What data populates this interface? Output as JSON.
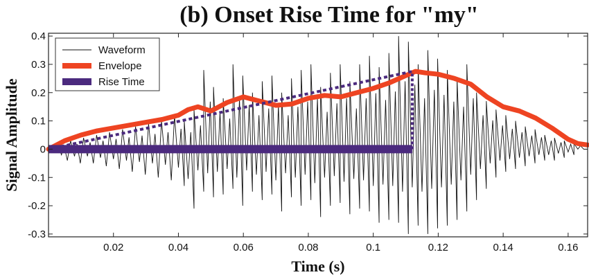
{
  "chart_data": {
    "type": "line",
    "title": "(b) Onset Rise Time for \"my\"",
    "xlabel": "Time (s)",
    "ylabel": "Signal Amplitude",
    "xlim": [
      0,
      0.166
    ],
    "ylim": [
      -0.31,
      0.41
    ],
    "x_ticks": [
      0.02,
      0.04,
      0.06,
      0.08,
      0.1,
      0.12,
      0.14,
      0.16
    ],
    "x_tick_labels": [
      "0.02",
      "0.04",
      "0.06",
      "0.08",
      "0.1",
      "0.12",
      "0.14",
      "0.16"
    ],
    "y_ticks": [
      -0.3,
      -0.2,
      -0.1,
      0,
      0.1,
      0.2,
      0.3,
      0.4
    ],
    "y_tick_labels": [
      "-0.3",
      "-0.2",
      "-0.1",
      "0",
      "0.1",
      "0.2",
      "0.3",
      "0.4"
    ],
    "grid": false,
    "legend_position": "top-left",
    "legend": [
      "Waveform",
      "Envelope",
      "Rise Time"
    ],
    "colors": {
      "waveform": "#111111",
      "envelope": "#ee4422",
      "rise_time": "#4b2a7e"
    },
    "series": [
      {
        "name": "Envelope",
        "x": [
          0,
          0.005,
          0.01,
          0.015,
          0.02,
          0.025,
          0.03,
          0.035,
          0.04,
          0.043,
          0.046,
          0.05,
          0.055,
          0.06,
          0.065,
          0.07,
          0.075,
          0.08,
          0.085,
          0.09,
          0.095,
          0.1,
          0.105,
          0.11,
          0.113,
          0.116,
          0.12,
          0.125,
          0.13,
          0.135,
          0.14,
          0.145,
          0.15,
          0.155,
          0.16,
          0.163,
          0.166
        ],
        "y": [
          0.0,
          0.03,
          0.05,
          0.065,
          0.075,
          0.085,
          0.095,
          0.105,
          0.12,
          0.14,
          0.15,
          0.135,
          0.165,
          0.185,
          0.17,
          0.155,
          0.16,
          0.18,
          0.19,
          0.185,
          0.2,
          0.215,
          0.235,
          0.26,
          0.275,
          0.27,
          0.265,
          0.25,
          0.23,
          0.185,
          0.15,
          0.135,
          0.11,
          0.075,
          0.035,
          0.02,
          0.015
        ]
      },
      {
        "name": "Rise Time",
        "x": [
          0,
          0.112
        ],
        "y": [
          0,
          0
        ]
      }
    ],
    "rise_slope_line": {
      "x": [
        0,
        0.112
      ],
      "y": [
        0,
        0.275
      ]
    },
    "rise_end_marker": {
      "x": 0.112,
      "y": [
        0,
        0.275
      ]
    },
    "waveform": {
      "peaks": [
        [
          0.004,
          0.02,
          -0.04
        ],
        [
          0.008,
          0.03,
          -0.05
        ],
        [
          0.012,
          0.04,
          -0.05
        ],
        [
          0.016,
          0.05,
          -0.06
        ],
        [
          0.02,
          0.06,
          -0.07
        ],
        [
          0.024,
          0.07,
          -0.08
        ],
        [
          0.028,
          0.08,
          -0.09
        ],
        [
          0.032,
          0.09,
          -0.1
        ],
        [
          0.036,
          0.1,
          -0.11
        ],
        [
          0.04,
          0.12,
          -0.13
        ],
        [
          0.043,
          0.1,
          -0.21
        ],
        [
          0.046,
          0.14,
          -0.15
        ],
        [
          0.049,
          0.28,
          -0.17
        ],
        [
          0.052,
          0.22,
          -0.16
        ],
        [
          0.055,
          0.18,
          -0.14
        ],
        [
          0.058,
          0.3,
          -0.2
        ],
        [
          0.061,
          0.26,
          -0.15
        ],
        [
          0.064,
          0.2,
          -0.18
        ],
        [
          0.067,
          0.24,
          -0.16
        ],
        [
          0.07,
          0.26,
          -0.22
        ],
        [
          0.073,
          0.2,
          -0.17
        ],
        [
          0.076,
          0.25,
          -0.2
        ],
        [
          0.079,
          0.28,
          -0.18
        ],
        [
          0.082,
          0.3,
          -0.24
        ],
        [
          0.085,
          0.22,
          -0.2
        ],
        [
          0.088,
          0.27,
          -0.19
        ],
        [
          0.091,
          0.3,
          -0.23
        ],
        [
          0.094,
          0.24,
          -0.21
        ],
        [
          0.097,
          0.3,
          -0.22
        ],
        [
          0.1,
          0.33,
          -0.26
        ],
        [
          0.103,
          0.29,
          -0.25
        ],
        [
          0.106,
          0.34,
          -0.26
        ],
        [
          0.109,
          0.4,
          -0.3
        ],
        [
          0.112,
          0.38,
          -0.27
        ],
        [
          0.115,
          0.3,
          -0.3
        ],
        [
          0.118,
          0.35,
          -0.28
        ],
        [
          0.121,
          0.32,
          -0.27
        ],
        [
          0.124,
          0.28,
          -0.25
        ],
        [
          0.127,
          0.25,
          -0.22
        ],
        [
          0.13,
          0.3,
          -0.18
        ],
        [
          0.133,
          0.2,
          -0.14
        ],
        [
          0.136,
          0.17,
          -0.1
        ],
        [
          0.139,
          0.14,
          -0.08
        ],
        [
          0.142,
          0.12,
          -0.07
        ],
        [
          0.145,
          0.1,
          -0.06
        ],
        [
          0.148,
          0.08,
          -0.05
        ],
        [
          0.151,
          0.07,
          -0.04
        ],
        [
          0.154,
          0.05,
          -0.04
        ],
        [
          0.157,
          0.04,
          -0.03
        ],
        [
          0.16,
          0.03,
          -0.02
        ],
        [
          0.163,
          0.02,
          0.0
        ]
      ]
    }
  }
}
